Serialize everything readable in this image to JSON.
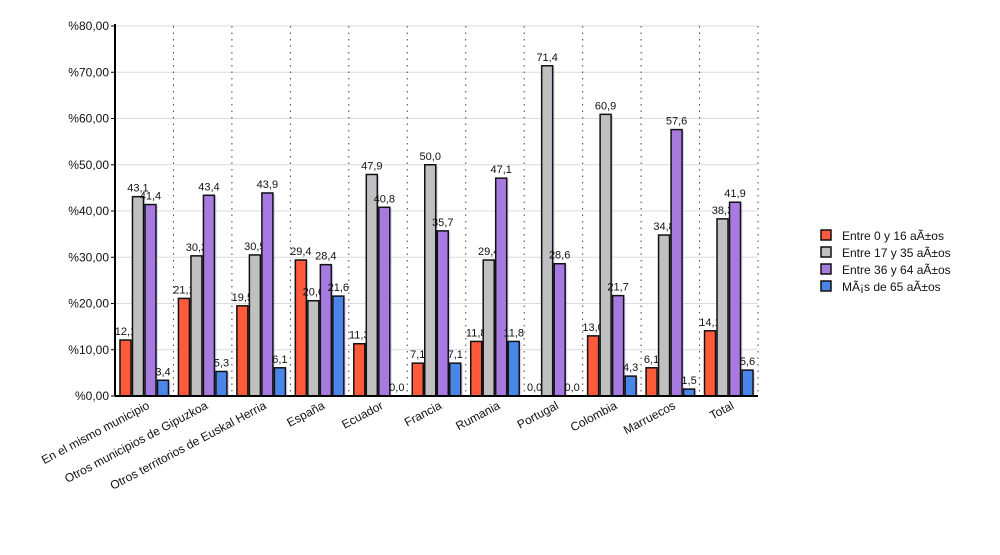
{
  "chart_data": {
    "type": "bar",
    "title": "",
    "xlabel": "",
    "ylabel": "",
    "ylim": [
      0,
      80
    ],
    "yticks": [
      "%0,00",
      "%10,00",
      "%20,00",
      "%30,00",
      "%40,00",
      "%50,00",
      "%60,00",
      "%70,00",
      "%80,00"
    ],
    "grid": true,
    "legend_position": "right",
    "categories": [
      "En el mismo municipio",
      "Otros municipios de Gipuzkoa",
      "Otros territorios de Euskal Herria",
      "España",
      "Ecuador",
      "Francia",
      "Rumania",
      "Portugal",
      "Colombia",
      "Marruecos",
      "Total"
    ],
    "series": [
      {
        "name": "Entre 0 y 16 aÃ±os",
        "color": "#ff5a3c",
        "values": [
          12.1,
          21.1,
          19.5,
          29.4,
          11.3,
          7.1,
          11.8,
          0.0,
          13.0,
          6.1,
          14.1
        ],
        "labels": [
          "12,1",
          "21,1",
          "19,5",
          "29,4",
          "11,3",
          "7,1",
          "11,8",
          "0,0",
          "13,0",
          "6,1",
          "14,1"
        ]
      },
      {
        "name": "Entre 17 y 35 aÃ±os",
        "color": "#c0c0c0",
        "values": [
          43.1,
          30.3,
          30.5,
          20.6,
          47.9,
          50.0,
          29.4,
          71.4,
          60.9,
          34.8,
          38.3
        ],
        "labels": [
          "43,1",
          "30,3",
          "30,5",
          "20,6",
          "47,9",
          "50,0",
          "29,4",
          "71,4",
          "60,9",
          "34,8",
          "38,3"
        ]
      },
      {
        "name": "Entre 36 y 64 aÃ±os",
        "color": "#a77ae0",
        "values": [
          41.4,
          43.4,
          43.9,
          28.4,
          40.8,
          35.7,
          47.1,
          28.6,
          21.7,
          57.6,
          41.9
        ],
        "labels": [
          "41,4",
          "43,4",
          "43,9",
          "28,4",
          "40,8",
          "35,7",
          "47,1",
          "28,6",
          "21,7",
          "57,6",
          "41,9"
        ]
      },
      {
        "name": "MÃ¡s de 65 aÃ±os",
        "color": "#4a86e8",
        "values": [
          3.4,
          5.3,
          6.1,
          21.6,
          0.0,
          7.1,
          11.8,
          0.0,
          4.3,
          1.5,
          5.6
        ],
        "labels": [
          "3,4",
          "5,3",
          "6,1",
          "21,6",
          "0,0",
          "7,1",
          "11,8",
          "0,0",
          "4,3",
          "1,5",
          "5,6"
        ]
      }
    ]
  }
}
